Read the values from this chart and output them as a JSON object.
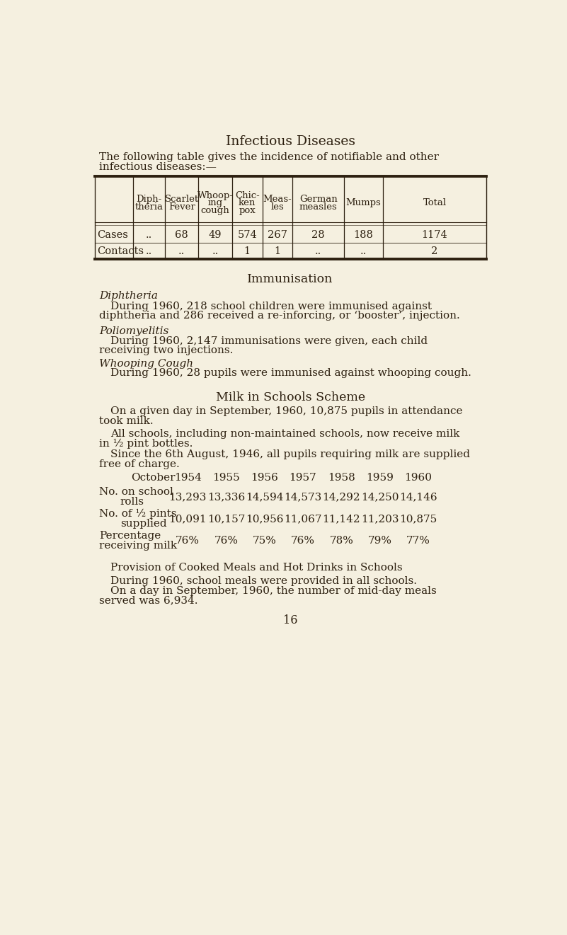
{
  "bg_color": "#f5f0e0",
  "text_color": "#2d2010",
  "page_number": "16",
  "title": "Infectious Diseases",
  "intro_line1": "The following table gives the incidence of notifiable and other",
  "intro_line2": "infectious diseases:—",
  "table_headers": [
    "Diph-\ntheria",
    "Scarlet\nFever",
    "Whoop-\ning\ncough",
    "Chic-\nken\npox",
    "Meas-\nles",
    "German\nmeasles",
    "Mumps",
    "Total"
  ],
  "table_row1_label": "Cases",
  "table_row1_vals": [
    "..",
    "68",
    "49",
    "574",
    "267",
    "28",
    "188",
    "1174"
  ],
  "table_row2_label": "Contacts",
  "table_row2_vals": [
    "..",
    "..",
    "..",
    "1",
    "1",
    "..",
    "..",
    "2"
  ],
  "immunisation_title": "Immunisation",
  "diphtheria_heading": "Diphtheria",
  "diphtheria_line1": "During 1960, 218 school children were immunised against",
  "diphtheria_line2": "diphtheria and 286 received a re-inforcing, or ‘booster’, injection.",
  "polio_heading": "Poliomyelitis",
  "polio_line1": "During 1960, 2,147 immunisations were given, each child",
  "polio_line2": "receiving two injections.",
  "whooping_heading": "Whooping Cough",
  "whooping_line1": "During 1960, 28 pupils were immunised against whooping cough.",
  "milk_title": "Milk in Schools Scheme",
  "milk_line1a": "On a given day in September, 1960, 10,875 pupils in attendance",
  "milk_line1b": "took milk.",
  "milk_line2a": "All schools, including non-maintained schools, now receive milk",
  "milk_line2b": "in ½ pint bottles.",
  "milk_line3a": "Since the 6th August, 1946, all pupils requiring milk are supplied",
  "milk_line3b": "free of charge.",
  "milk_table_years": [
    "October",
    "1954",
    "1955",
    "1956",
    "1957",
    "1958",
    "1959",
    "1960"
  ],
  "milk_table_rolls": [
    "13,293",
    "13,336",
    "14,594",
    "14,573",
    "14,292",
    "14,250",
    "14,146"
  ],
  "milk_table_pints": [
    "10,091",
    "10,157",
    "10,956",
    "11,067",
    "11,142",
    "11,203",
    "10,875"
  ],
  "milk_table_pct": [
    "76%",
    "76%",
    "75%",
    "76%",
    "78%",
    "79%",
    "77%"
  ],
  "provision_title": "Provision of Cooked Meals and Hot Drinks in Schools",
  "provision_line1": "During 1960, school meals were provided in all schools.",
  "provision_line2": "On a day in September, 1960, the number of mid-day meals",
  "provision_line3": "served was 6,934."
}
